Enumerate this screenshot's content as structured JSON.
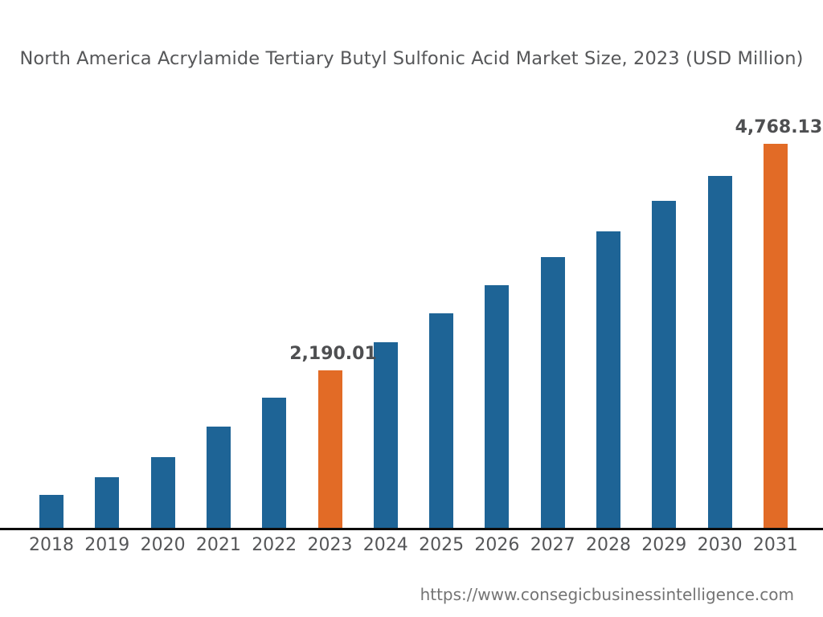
{
  "header": {
    "title": "North America Acrylamide Tertiary Butyl Sulfonic Acid Market Size, 2023 (USD Million)"
  },
  "footer": {
    "url": "https://www.consegicbusinessintelligence.com"
  },
  "chart_data": {
    "type": "bar",
    "title": "North America Acrylamide Tertiary Butyl Sulfonic Acid Market Size, 2023 (USD Million)",
    "unit": "USD Million",
    "categories": [
      "2018",
      "2019",
      "2020",
      "2021",
      "2022",
      "2023",
      "2024",
      "2025",
      "2026",
      "2027",
      "2028",
      "2029",
      "2030",
      "2031"
    ],
    "values": [
      775,
      970,
      1200,
      1550,
      1875,
      2190.01,
      2510,
      2840,
      3155,
      3475,
      3770,
      4120,
      4405,
      4768.13
    ],
    "labeled_points": [
      {
        "category": "2023",
        "value": 2190.01,
        "label": "2,190.01"
      },
      {
        "category": "2031",
        "value": 4768.13,
        "label": "4,768.13"
      }
    ],
    "highlighted_categories": [
      "2023",
      "2031"
    ],
    "xlabel": "",
    "ylabel": "",
    "ylim": [
      0,
      5000
    ],
    "grid": false,
    "legend": null,
    "colors": {
      "bar": "#1E6496",
      "highlight": "#E26B26",
      "axis": "#0C0C0C",
      "text": "#565759",
      "value_label_text": "#4E4F51",
      "footer_text": "#747474"
    }
  }
}
